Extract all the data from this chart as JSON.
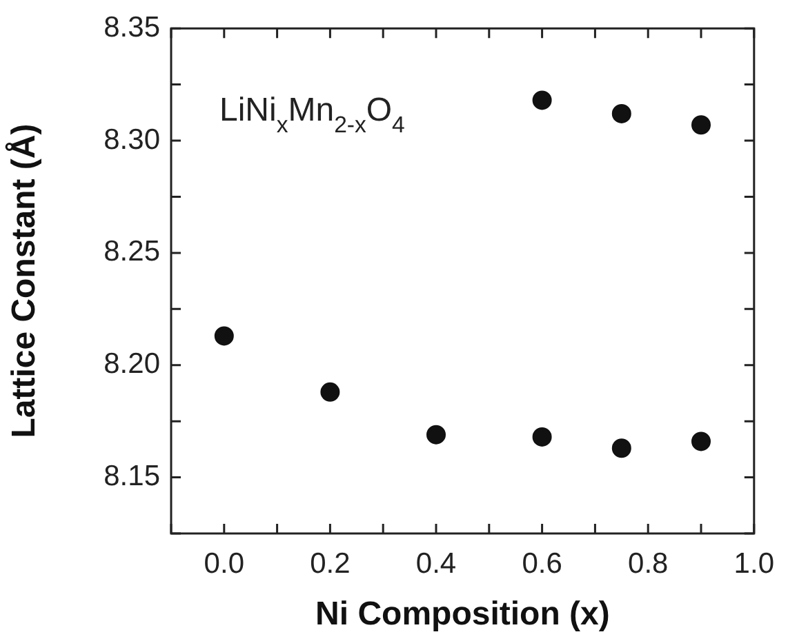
{
  "chart_data": {
    "type": "scatter",
    "xlabel": "Ni Composition (x)",
    "ylabel": "Lattice Constant (Å)",
    "annotations": [
      "LiNi$_{x}$Mn$_{2-x}$O$_{4}$"
    ],
    "series": [
      {
        "color": "#111111",
        "x": [
          0.0,
          0.2,
          0.4,
          0.6,
          0.75,
          0.9,
          0.6,
          0.75,
          0.9
        ],
        "values": [
          8.213,
          8.188,
          8.169,
          8.168,
          8.163,
          8.166,
          8.318,
          8.312,
          8.307
        ]
      }
    ],
    "xlim": [
      -0.1,
      1.0
    ],
    "xticks": [
      {
        "value": -0.1,
        "label": null
      },
      {
        "value": 0.0,
        "label": "0.0"
      },
      {
        "value": 0.1,
        "label": null
      },
      {
        "value": 0.2,
        "label": "0.2"
      },
      {
        "value": 0.3,
        "label": null
      },
      {
        "value": 0.4,
        "label": "0.4"
      },
      {
        "value": 0.5,
        "label": null
      },
      {
        "value": 0.6,
        "label": "0.6"
      },
      {
        "value": 0.7,
        "label": null
      },
      {
        "value": 0.8,
        "label": "0.8"
      },
      {
        "value": 0.9,
        "label": null
      },
      {
        "value": 1.0,
        "label": "1.0"
      }
    ],
    "ylim": [
      8.125,
      8.35
    ],
    "yticks": [
      {
        "value": 8.125,
        "label": null
      },
      {
        "value": 8.15,
        "label": "8.15"
      },
      {
        "value": 8.175,
        "label": null
      },
      {
        "value": 8.2,
        "label": "8.20"
      },
      {
        "value": 8.225,
        "label": null
      },
      {
        "value": 8.25,
        "label": "8.25"
      },
      {
        "value": 8.275,
        "label": null
      },
      {
        "value": 8.3,
        "label": "8.30"
      },
      {
        "value": 8.325,
        "label": null
      },
      {
        "value": 8.35,
        "label": "8.35"
      }
    ],
    "grid": false,
    "legend": false,
    "marker": "circle"
  }
}
